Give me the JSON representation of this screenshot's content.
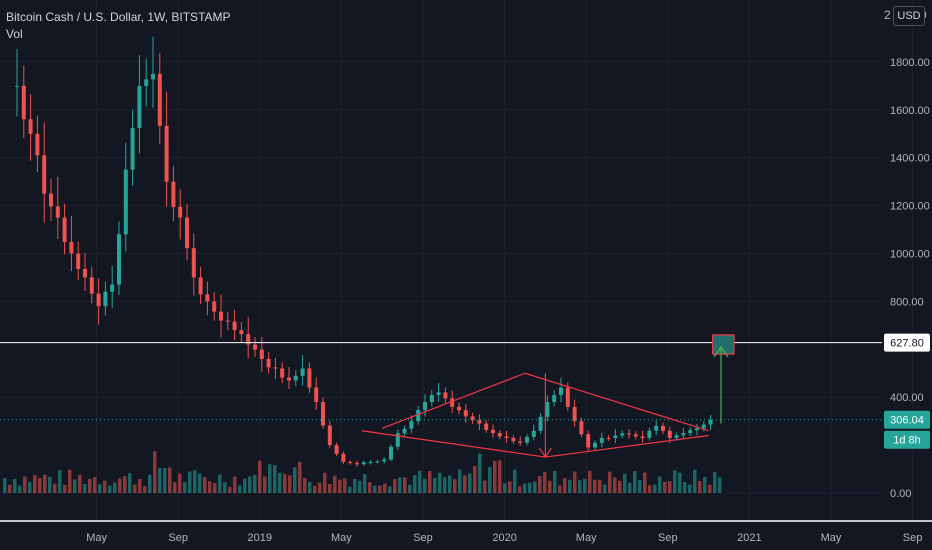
{
  "legend": {
    "title": "Bitcoin Cash / U.S. Dollar, 1W, BITSTAMP",
    "indicator": "Vol"
  },
  "price_scale": {
    "currency": "USD",
    "top_clip_left": "2",
    "top_clip_right": "0"
  },
  "chart_data": {
    "type": "candlestick",
    "symbol": "Bitcoin Cash / U.S. Dollar",
    "interval": "1W",
    "exchange": "BITSTAMP",
    "y_ticks": [
      "1800.00",
      "1600.00",
      "1400.00",
      "1200.00",
      "1000.00",
      "800.00",
      "400.00",
      "0.00"
    ],
    "y_tick_values": [
      1800,
      1600,
      1400,
      1200,
      1000,
      800,
      400,
      0
    ],
    "ylim": [
      -100,
      1950
    ],
    "x_labels": [
      "May",
      "Sep",
      "2019",
      "May",
      "Sep",
      "2020",
      "May",
      "Sep",
      "2021",
      "May",
      "Sep"
    ],
    "x_label_dates": [
      "2018-05",
      "2018-09",
      "2019-01",
      "2019-05",
      "2019-09",
      "2020-01",
      "2020-05",
      "2020-09",
      "2021-01",
      "2021-05",
      "2021-09"
    ],
    "markers": {
      "horizontal_level": {
        "label": "627.80",
        "value": 627.8
      },
      "last_price": {
        "label": "306.04",
        "value": 306.04
      },
      "countdown": "1d 8h"
    },
    "close_path": [
      [
        "2018-01",
        1700
      ],
      [
        "2018-01",
        1500
      ],
      [
        "2018-02",
        1250
      ],
      [
        "2018-02",
        1150
      ],
      [
        "2018-03",
        1000
      ],
      [
        "2018-03",
        900
      ],
      [
        "2018-04",
        780
      ],
      [
        "2018-04",
        870
      ],
      [
        "2018-05",
        1350
      ],
      [
        "2018-05",
        1700
      ],
      [
        "2018-05",
        1750
      ],
      [
        "2018-06",
        1300
      ],
      [
        "2018-06",
        1150
      ],
      [
        "2018-07",
        900
      ],
      [
        "2018-07",
        800
      ],
      [
        "2018-08",
        720
      ],
      [
        "2018-08",
        680
      ],
      [
        "2018-09",
        620
      ],
      [
        "2018-09",
        560
      ],
      [
        "2018-10",
        520
      ],
      [
        "2018-10",
        470
      ],
      [
        "2018-11",
        520
      ],
      [
        "2018-11",
        380
      ],
      [
        "2018-12",
        200
      ],
      [
        "2018-12",
        130
      ],
      [
        "2019-01",
        120
      ],
      [
        "2019-02",
        130
      ],
      [
        "2019-03",
        140
      ],
      [
        "2019-04",
        250
      ],
      [
        "2019-04",
        300
      ],
      [
        "2019-05",
        380
      ],
      [
        "2019-06",
        420
      ],
      [
        "2019-07",
        360
      ],
      [
        "2019-08",
        320
      ],
      [
        "2019-09",
        290
      ],
      [
        "2019-10",
        250
      ],
      [
        "2019-11",
        230
      ],
      [
        "2019-12",
        210
      ],
      [
        "2020-01",
        260
      ],
      [
        "2020-02",
        380
      ],
      [
        "2020-02",
        440
      ],
      [
        "2020-03",
        300
      ],
      [
        "2020-03",
        190
      ],
      [
        "2020-04",
        230
      ],
      [
        "2020-05",
        240
      ],
      [
        "2020-06",
        245
      ],
      [
        "2020-07",
        230
      ],
      [
        "2020-08",
        280
      ],
      [
        "2020-09",
        230
      ],
      [
        "2020-10",
        250
      ],
      [
        "2020-11",
        270
      ],
      [
        "2020-11",
        306
      ]
    ],
    "pattern_lines": [
      {
        "from": [
          "2019-07",
          270
        ],
        "to": [
          "2020-02",
          500
        ]
      },
      {
        "from": [
          "2020-02",
          500
        ],
        "to": [
          "2020-11",
          260
        ]
      },
      {
        "from": [
          "2019-06",
          260
        ],
        "to": [
          "2020-03",
          150
        ]
      },
      {
        "from": [
          "2020-03",
          150
        ],
        "to": [
          "2020-11",
          240
        ]
      },
      {
        "from": [
          "2020-03",
          500
        ],
        "to": [
          "2020-03",
          150
        ]
      }
    ],
    "target_arrow": {
      "from": [
        "2020-12",
        290
      ],
      "to": [
        "2020-12",
        610
      ]
    },
    "target_box": {
      "from": [
        "2020-11",
        580
      ],
      "to": [
        "2020-12",
        660
      ]
    },
    "colors": {
      "up": "#26a69a",
      "down": "#ef5350",
      "background": "#131722",
      "grid": "#1e222d",
      "pattern": "#f23645",
      "arrow_up": "#4caf50",
      "level_line": "#ffffff",
      "last_price": "#26a69a"
    }
  }
}
